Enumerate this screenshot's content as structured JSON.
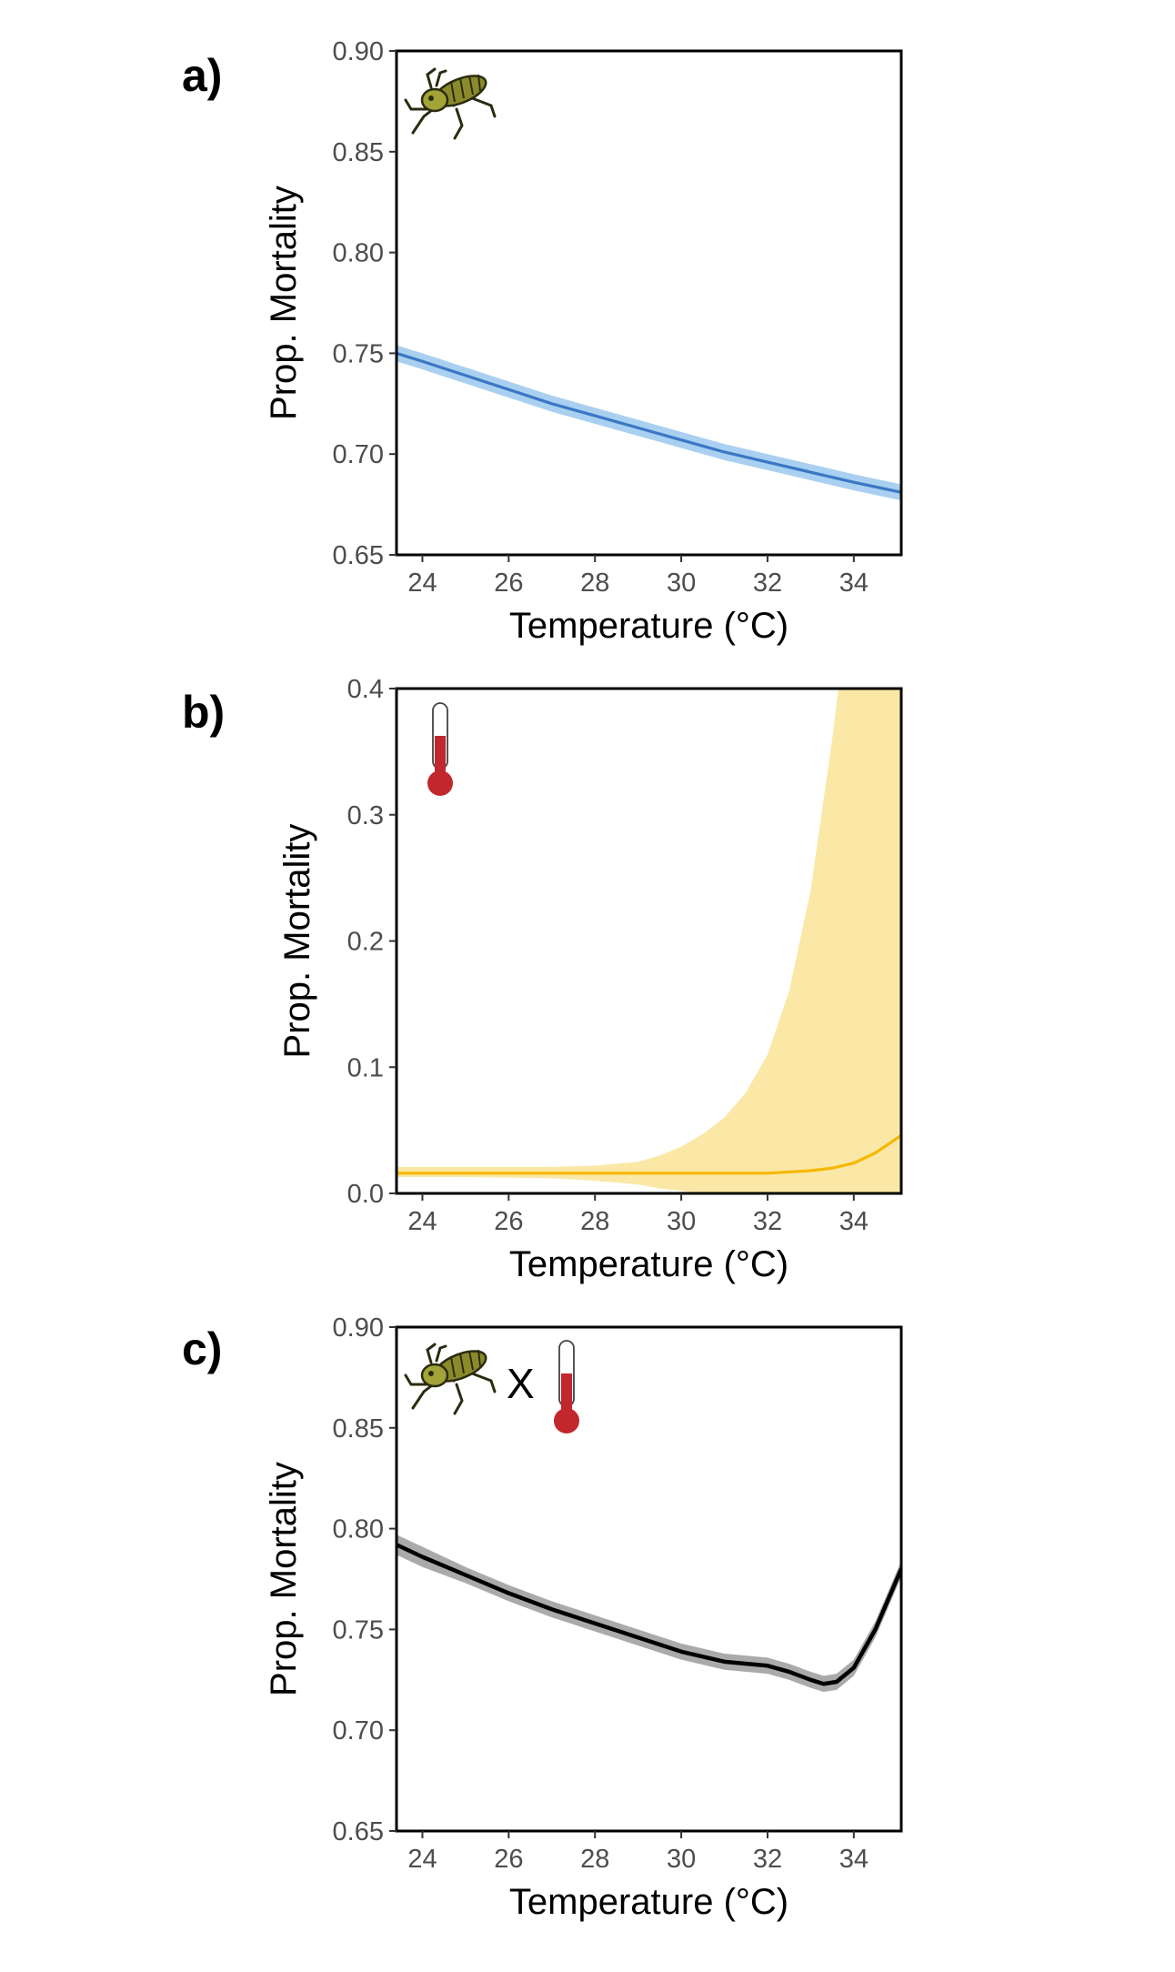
{
  "chart_data": [
    {
      "panel_label": "a)",
      "type": "line",
      "xlabel": "Temperature (°C)",
      "ylabel": "Prop. Mortality",
      "xlim": [
        23.4,
        35.1
      ],
      "ylim": [
        0.65,
        0.9
      ],
      "xticks": [
        24,
        26,
        28,
        30,
        32,
        34
      ],
      "yticks": [
        0.65,
        0.7,
        0.75,
        0.8,
        0.85,
        0.9
      ],
      "ytick_labels": [
        "0.65",
        "0.70",
        "0.75",
        "0.80",
        "0.85",
        "0.90"
      ],
      "grid": false,
      "icons": [
        "grasshopper-icon"
      ],
      "colors": {
        "line": "#3a78c4",
        "band": "#a9d0f0"
      },
      "x": [
        23.4,
        24,
        25,
        26,
        27,
        28,
        29,
        30,
        31,
        32,
        33,
        34,
        35.1
      ],
      "y": [
        0.75,
        0.746,
        0.739,
        0.732,
        0.725,
        0.719,
        0.713,
        0.707,
        0.701,
        0.696,
        0.691,
        0.686,
        0.681
      ],
      "band_halfwidth": [
        0.004,
        0.004,
        0.004,
        0.004,
        0.004,
        0.004,
        0.004,
        0.004,
        0.004,
        0.004,
        0.004,
        0.004,
        0.004
      ]
    },
    {
      "panel_label": "b)",
      "type": "line",
      "xlabel": "Temperature (°C)",
      "ylabel": "Prop. Mortality",
      "xlim": [
        23.4,
        35.1
      ],
      "ylim": [
        0.0,
        0.4
      ],
      "xticks": [
        24,
        26,
        28,
        30,
        32,
        34
      ],
      "yticks": [
        0.0,
        0.1,
        0.2,
        0.3,
        0.4
      ],
      "ytick_labels": [
        "0.0",
        "0.1",
        "0.2",
        "0.3",
        "0.4"
      ],
      "grid": false,
      "icons": [
        "thermometer-icon"
      ],
      "colors": {
        "line": "#f5b800",
        "band": "#fbe8a6"
      },
      "x": [
        23.4,
        25,
        27,
        28,
        29,
        29.5,
        30,
        30.5,
        31,
        31.5,
        32,
        32.5,
        33,
        33.5,
        34,
        34.5,
        35.1
      ],
      "y": [
        0.016,
        0.016,
        0.016,
        0.016,
        0.016,
        0.016,
        0.016,
        0.016,
        0.016,
        0.016,
        0.016,
        0.017,
        0.018,
        0.02,
        0.024,
        0.032,
        0.046
      ],
      "band_upper": [
        0.021,
        0.021,
        0.021,
        0.022,
        0.025,
        0.03,
        0.037,
        0.047,
        0.06,
        0.08,
        0.11,
        0.16,
        0.24,
        0.36,
        0.5,
        0.5,
        0.5
      ],
      "band_lower": [
        0.013,
        0.013,
        0.012,
        0.01,
        0.007,
        0.004,
        0.002,
        0.0,
        0.0,
        0.0,
        0.0,
        0.0,
        0.0,
        0.0,
        0.0,
        0.0,
        0.0
      ]
    },
    {
      "panel_label": "c)",
      "type": "line",
      "xlabel": "Temperature (°C)",
      "ylabel": "Prop. Mortality",
      "xlim": [
        23.4,
        35.1
      ],
      "ylim": [
        0.65,
        0.9
      ],
      "xticks": [
        24,
        26,
        28,
        30,
        32,
        34
      ],
      "yticks": [
        0.65,
        0.7,
        0.75,
        0.8,
        0.85,
        0.9
      ],
      "ytick_labels": [
        "0.65",
        "0.70",
        "0.75",
        "0.80",
        "0.85",
        "0.90"
      ],
      "grid": false,
      "icons": [
        "grasshopper-icon",
        "thermometer-icon"
      ],
      "icon_separator": "X",
      "colors": {
        "line": "#000000",
        "band": "#aaaaaa"
      },
      "x": [
        23.4,
        24,
        25,
        26,
        27,
        28,
        29,
        30,
        31,
        32,
        32.5,
        33,
        33.3,
        33.6,
        34,
        34.5,
        35.1
      ],
      "y": [
        0.792,
        0.786,
        0.777,
        0.768,
        0.76,
        0.753,
        0.746,
        0.739,
        0.734,
        0.732,
        0.729,
        0.725,
        0.723,
        0.724,
        0.731,
        0.75,
        0.78
      ],
      "band_halfwidth": [
        0.005,
        0.005,
        0.004,
        0.004,
        0.004,
        0.004,
        0.004,
        0.004,
        0.004,
        0.004,
        0.004,
        0.004,
        0.004,
        0.004,
        0.004,
        0.004,
        0.004
      ]
    }
  ]
}
